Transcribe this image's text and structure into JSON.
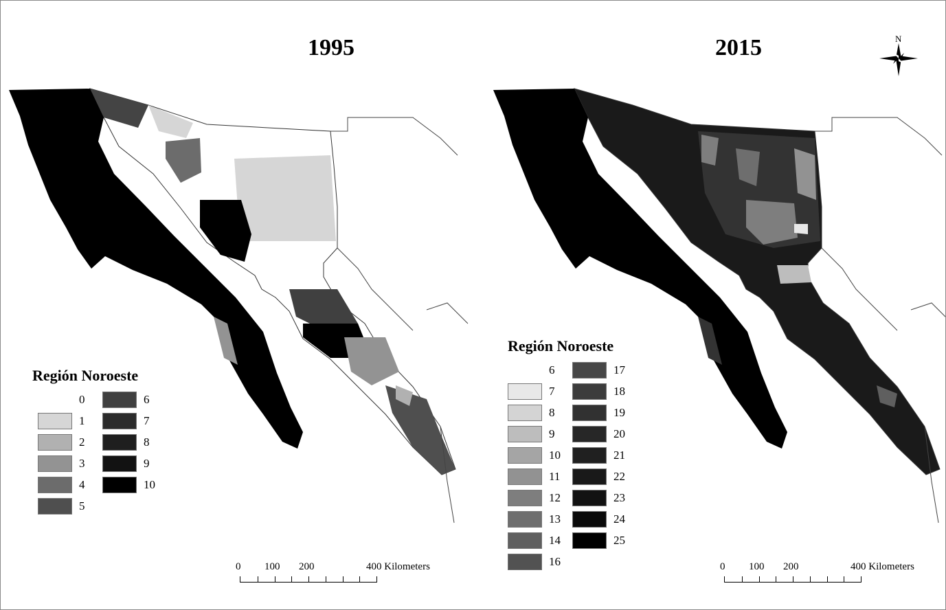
{
  "maps": [
    {
      "title": "1995",
      "legend": {
        "title": "Región Noroeste",
        "items": [
          {
            "label": "0",
            "color": "#ffffff"
          },
          {
            "label": "1",
            "color": "#d6d6d6"
          },
          {
            "label": "2",
            "color": "#b1b1b1"
          },
          {
            "label": "3",
            "color": "#939393"
          },
          {
            "label": "4",
            "color": "#6c6c6c"
          },
          {
            "label": "5",
            "color": "#4f4f4f"
          },
          {
            "label": "6",
            "color": "#404040"
          },
          {
            "label": "7",
            "color": "#2b2b2b"
          },
          {
            "label": "8",
            "color": "#1f1f1f"
          },
          {
            "label": "9",
            "color": "#121212"
          },
          {
            "label": "10",
            "color": "#000000"
          }
        ]
      },
      "scale": {
        "labels": [
          "0",
          "100",
          "200",
          "400 Kilometers"
        ]
      }
    },
    {
      "title": "2015",
      "legend": {
        "title": "Región Noroeste",
        "items": [
          {
            "label": "6",
            "color": "#ffffff"
          },
          {
            "label": "7",
            "color": "#e8e8e8"
          },
          {
            "label": "8",
            "color": "#d4d4d4"
          },
          {
            "label": "9",
            "color": "#bdbdbd"
          },
          {
            "label": "10",
            "color": "#a5a5a5"
          },
          {
            "label": "11",
            "color": "#929292"
          },
          {
            "label": "12",
            "color": "#7e7e7e"
          },
          {
            "label": "13",
            "color": "#6e6e6e"
          },
          {
            "label": "14",
            "color": "#5f5f5f"
          },
          {
            "label": "16",
            "color": "#525252"
          },
          {
            "label": "17",
            "color": "#474747"
          },
          {
            "label": "18",
            "color": "#3c3c3c"
          },
          {
            "label": "19",
            "color": "#313131"
          },
          {
            "label": "20",
            "color": "#272727"
          },
          {
            "label": "21",
            "color": "#202020"
          },
          {
            "label": "22",
            "color": "#191919"
          },
          {
            "label": "23",
            "color": "#121212"
          },
          {
            "label": "24",
            "color": "#0a0a0a"
          },
          {
            "label": "25",
            "color": "#000000"
          }
        ]
      },
      "scale": {
        "labels": [
          "0",
          "100",
          "200",
          "400 Kilometers"
        ]
      }
    }
  ],
  "north_label": "N"
}
